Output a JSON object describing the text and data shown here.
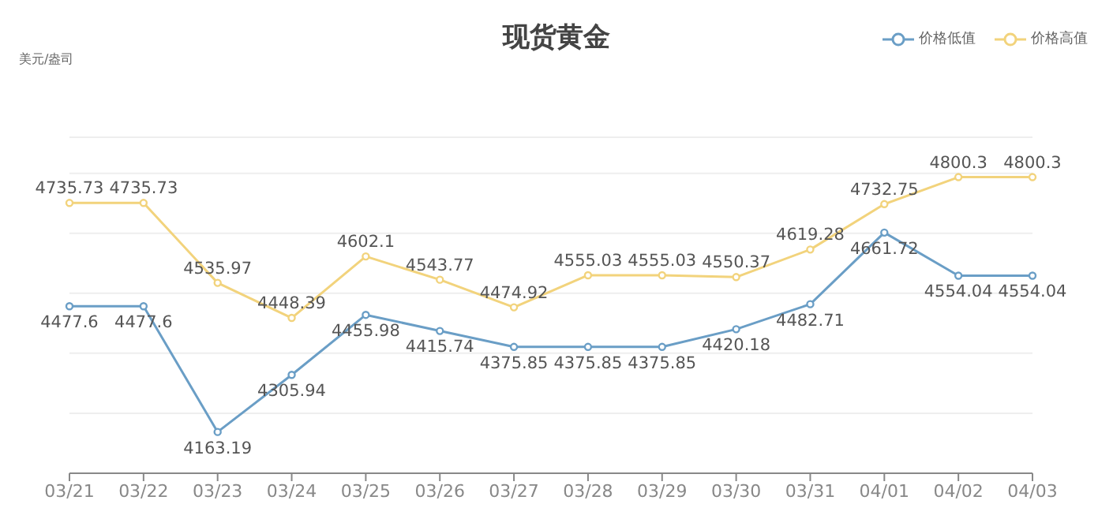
{
  "chart_data": {
    "type": "line",
    "title": "现货黄金",
    "annotations": [
      "美元/盎司"
    ],
    "categories": [
      "03/21",
      "03/22",
      "03/23",
      "03/24",
      "03/25",
      "03/26",
      "03/27",
      "03/28",
      "03/29",
      "03/30",
      "03/31",
      "04/01",
      "04/02",
      "04/03"
    ],
    "series": [
      {
        "name": "价格低值",
        "color": "#6a9ec6",
        "values": [
          4477.6,
          4477.6,
          4163.19,
          4305.94,
          4455.98,
          4415.74,
          4375.85,
          4375.85,
          4375.85,
          4420.18,
          4482.71,
          4661.72,
          4554.04,
          4554.04
        ]
      },
      {
        "name": "价格高值",
        "color": "#f2d37c",
        "values": [
          4735.73,
          4735.73,
          4535.97,
          4448.39,
          4602.1,
          4543.77,
          4474.92,
          4555.03,
          4555.03,
          4550.37,
          4619.28,
          4732.75,
          4800.3,
          4800.3
        ]
      }
    ],
    "ylim": [
      4060,
      4900
    ],
    "tick_labels": "x",
    "grid": "y",
    "legend": "top right",
    "marker": "circle",
    "line_style": "solid",
    "data_labels": true
  }
}
